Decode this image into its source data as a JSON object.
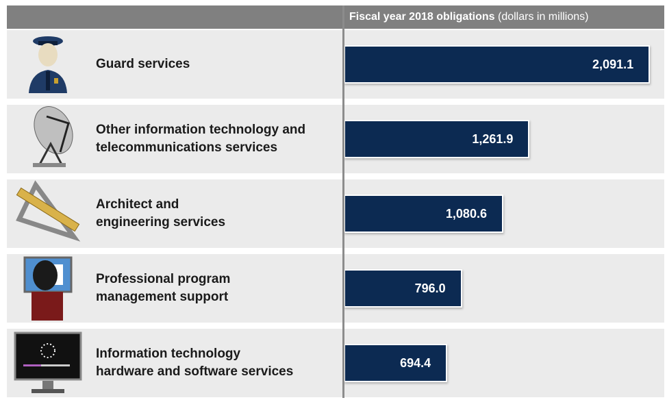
{
  "chart_data": {
    "type": "bar",
    "title": "Fiscal year 2018 obligations",
    "subtitle": "(dollars in millions)",
    "categories": [
      "Guard services",
      "Other information technology and\ntelecommunications services",
      "Architect and\nengineering services",
      "Professional program\nmanagement support",
      "Information technology\nhardware and software services"
    ],
    "values": [
      2091.1,
      1261.9,
      1080.6,
      796.0,
      694.4
    ],
    "value_labels": [
      "2,091.1",
      "1,261.9",
      "1,080.6",
      "796.0",
      "694.4"
    ],
    "color": "#0c2a52",
    "xlim": [
      0,
      2100
    ]
  }
}
